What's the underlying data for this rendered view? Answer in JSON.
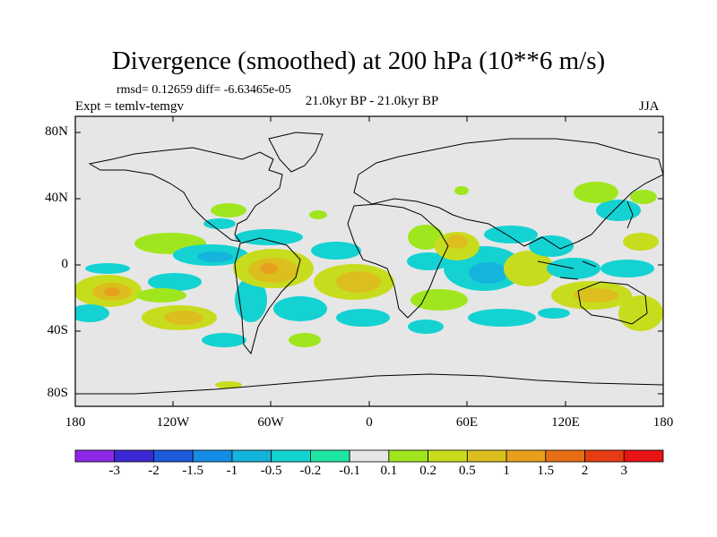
{
  "title": "Divergence (smoothed) at 200 hPa (10**6 m/s)",
  "stats": "rmsd= 0.12659  diff= -6.63465e-05",
  "period": "21.0kyr BP - 21.0kyr BP",
  "experiment": "Expt = temlv-temgv",
  "season": "JJA",
  "latitude_labels": [
    "80N",
    "40N",
    "0",
    "40S",
    "80S"
  ],
  "longitude_labels": [
    "180",
    "120W",
    "60W",
    "0",
    "60E",
    "120E",
    "180"
  ],
  "colorbar": {
    "labels": [
      "-3",
      "-2",
      "-1.5",
      "-1",
      "-0.5",
      "-0.2",
      "-0.1",
      "0.1",
      "0.2",
      "0.5",
      "1",
      "1.5",
      "2",
      "3"
    ],
    "colors": [
      "#8c28e6",
      "#3c28d2",
      "#1e5adc",
      "#148ce6",
      "#14b4dc",
      "#14d2d2",
      "#1ee6a0",
      "#e6e6e6",
      "#a0e61e",
      "#c8dc1e",
      "#dcbe1e",
      "#e6a01e",
      "#e66e14",
      "#e63c14",
      "#e61414"
    ]
  },
  "background_color": "#e6e6e6"
}
